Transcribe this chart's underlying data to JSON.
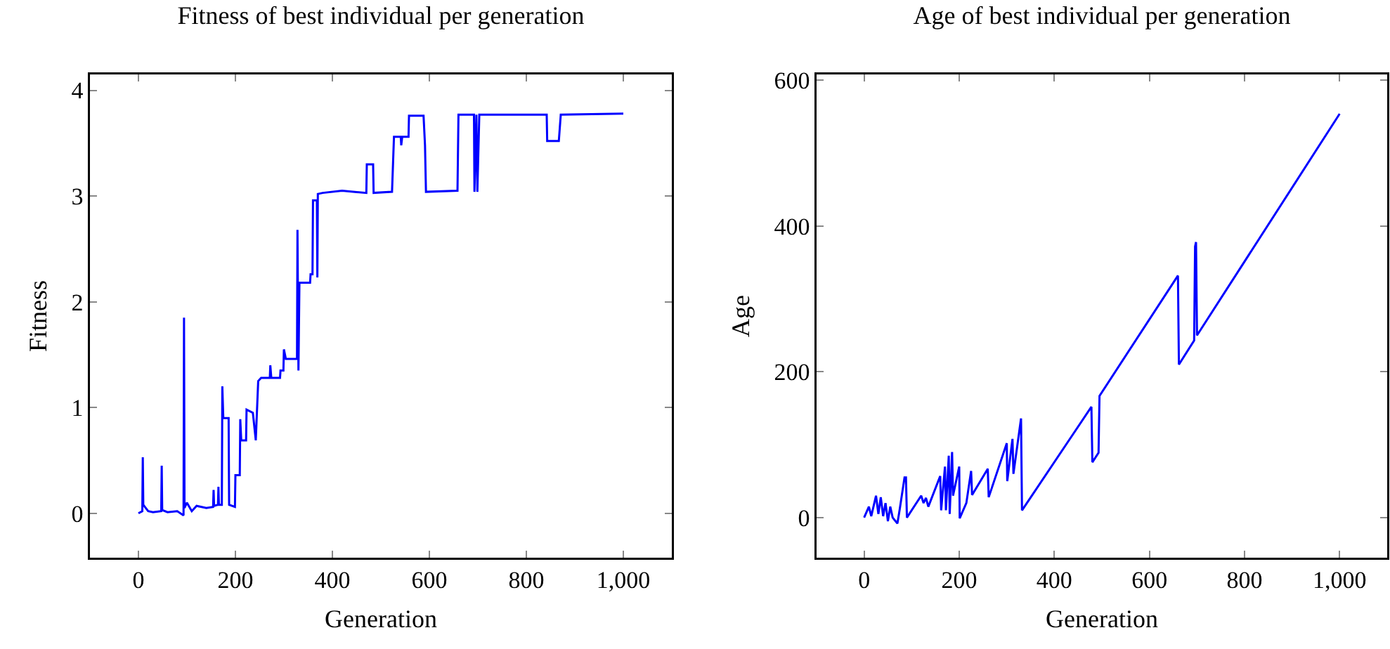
{
  "chart_data": [
    {
      "type": "line",
      "title": "Fitness of best individual per generation",
      "xlabel": "Generation",
      "ylabel": "Fitness",
      "xlim": [
        -100,
        1100
      ],
      "xticks": [
        0,
        200,
        400,
        600,
        800,
        {
          "value": 1000,
          "label": "1,000"
        }
      ],
      "ylim": [
        -0.42,
        4.15
      ],
      "yticks": [
        0,
        1,
        2,
        3,
        4
      ],
      "line_style": "solid",
      "series": [
        {
          "color": "#0000ff",
          "x": [
            0,
            8,
            9,
            10,
            20,
            30,
            47,
            48,
            49,
            60,
            80,
            93,
            94,
            95,
            100,
            110,
            120,
            140,
            154,
            155,
            156,
            164,
            165,
            166,
            172,
            173,
            175,
            186,
            187,
            199,
            200,
            209,
            210,
            212,
            222,
            223,
            236,
            242,
            247,
            253,
            271,
            272,
            274,
            292,
            293,
            299,
            300,
            304,
            327,
            328,
            330,
            332,
            354,
            355,
            359,
            360,
            368,
            369,
            370,
            380,
            420,
            470,
            471,
            484,
            485,
            523,
            527,
            541,
            542,
            544,
            557,
            558,
            588,
            591,
            593,
            658,
            660,
            692,
            693,
            697,
            699,
            703,
            842,
            843,
            867,
            871,
            1000
          ],
          "values": [
            0,
            0.02,
            0.53,
            0.08,
            0.02,
            0.01,
            0.02,
            0.45,
            0.03,
            0.01,
            0.02,
            -0.02,
            1.85,
            0.05,
            0.1,
            0.02,
            0.07,
            0.05,
            0.06,
            0.22,
            0.07,
            0.08,
            0.25,
            0.08,
            0.08,
            1.2,
            0.9,
            0.9,
            0.08,
            0.06,
            0.36,
            0.36,
            0.89,
            0.69,
            0.69,
            0.98,
            0.95,
            0.69,
            1.25,
            1.28,
            1.28,
            1.4,
            1.28,
            1.28,
            1.35,
            1.35,
            1.55,
            1.46,
            1.46,
            2.68,
            1.35,
            2.18,
            2.18,
            2.26,
            2.26,
            2.96,
            2.96,
            2.23,
            3.02,
            3.03,
            3.05,
            3.03,
            3.3,
            3.3,
            3.03,
            3.04,
            3.56,
            3.56,
            3.48,
            3.56,
            3.56,
            3.76,
            3.76,
            3.48,
            3.04,
            3.05,
            3.77,
            3.77,
            3.04,
            3.77,
            3.04,
            3.77,
            3.77,
            3.52,
            3.52,
            3.77,
            3.78
          ]
        }
      ]
    },
    {
      "type": "line",
      "title": "Age of best individual per generation",
      "xlabel": "Generation",
      "ylabel": "Age",
      "xlim": [
        -100,
        1100
      ],
      "xticks": [
        0,
        200,
        400,
        600,
        800,
        {
          "value": 1000,
          "label": "1,000"
        }
      ],
      "ylim": [
        -55,
        608
      ],
      "yticks": [
        0,
        200,
        400,
        600
      ],
      "line_style": "solid",
      "series": [
        {
          "color": "#0000ff",
          "x": [
            0,
            10,
            15,
            25,
            30,
            35,
            40,
            45,
            50,
            55,
            60,
            70,
            75,
            85,
            88,
            90,
            120,
            125,
            130,
            135,
            160,
            162,
            170,
            172,
            178,
            180,
            185,
            187,
            200,
            201,
            215,
            225,
            227,
            260,
            262,
            300,
            301,
            312,
            314,
            330,
            332,
            478,
            480,
            493,
            495,
            660,
            662,
            694,
            696,
            698,
            700,
            1000
          ],
          "values": [
            0,
            15,
            2,
            30,
            5,
            28,
            2,
            20,
            -5,
            15,
            0,
            -8,
            12,
            55,
            55,
            0,
            30,
            20,
            27,
            15,
            57,
            10,
            70,
            10,
            85,
            5,
            90,
            30,
            70,
            -1,
            20,
            64,
            31,
            67,
            28,
            102,
            50,
            108,
            60,
            136,
            10,
            152,
            76,
            89,
            167,
            332,
            210,
            243,
            372,
            378,
            250,
            554
          ]
        }
      ]
    }
  ]
}
